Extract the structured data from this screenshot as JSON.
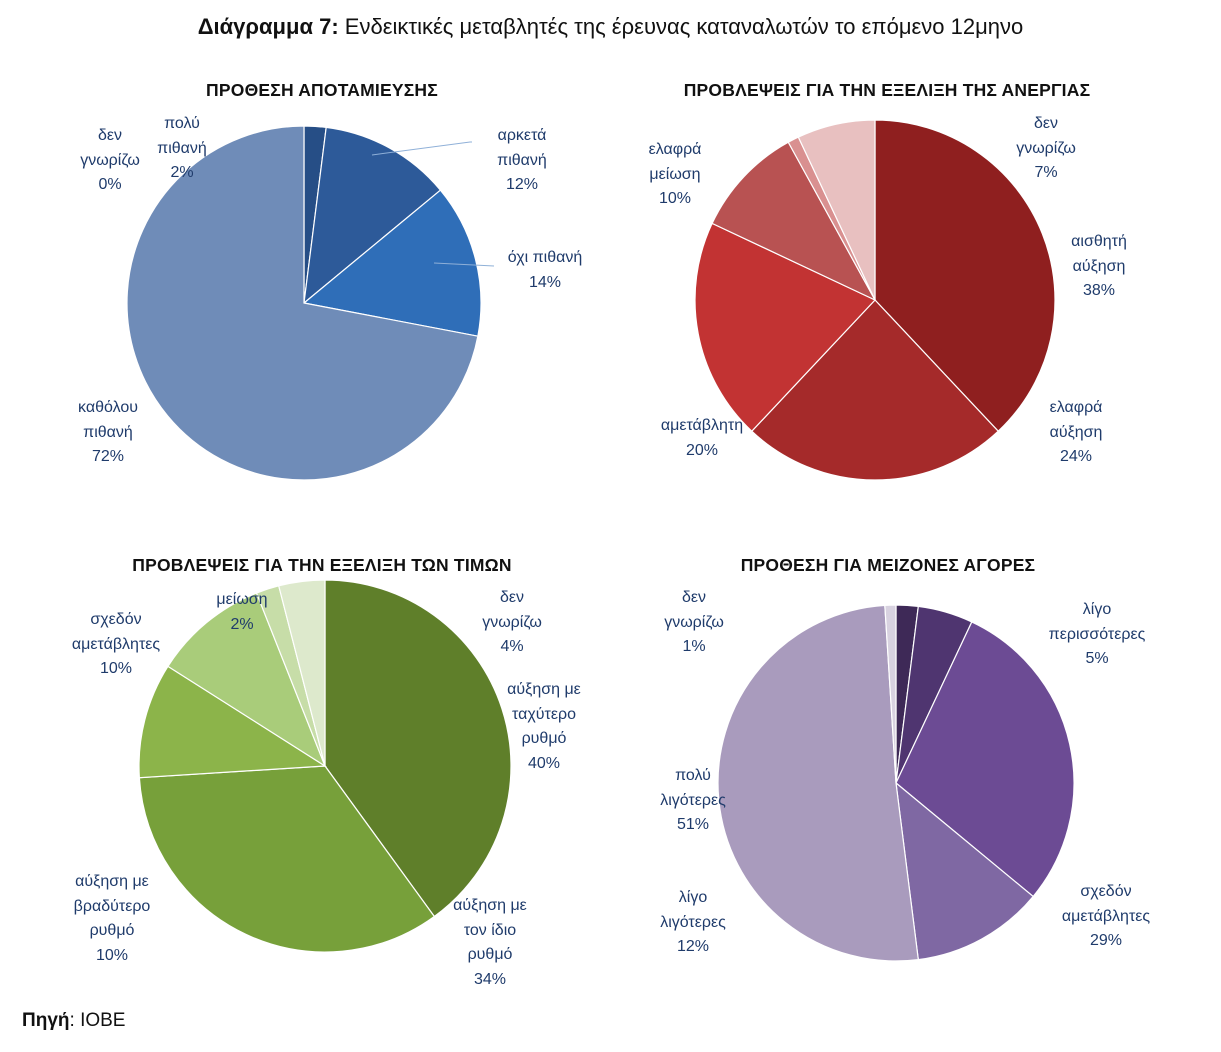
{
  "header": {
    "title_bold": "Διάγραμμα 7:",
    "title_rest": " Ενδεικτικές μεταβλητές της έρευνας καταναλωτών το επόμενο 12μηνο"
  },
  "source": {
    "label": "Πηγή",
    "sep": ": ",
    "value": "ΙΟΒΕ"
  },
  "colors": {
    "savings": [
      "#264e86",
      "#2d5a99",
      "#2f6eb8",
      "#6f8cb8"
    ],
    "unemployment": [
      "#8f1f1f",
      "#a52a2a",
      "#c23333",
      "#b85252",
      "#d99090",
      "#e8c0c0"
    ],
    "prices": [
      "#5f7f2a",
      "#77a03a",
      "#8cb44a",
      "#a9cc7a",
      "#c7dda8",
      "#dde9cc"
    ],
    "purchases": [
      "#3e2957",
      "#4f3570",
      "#6c4b94",
      "#7f68a3",
      "#a99bbd",
      "#d8d2e0"
    ]
  },
  "chart_data": [
    {
      "type": "pie",
      "title": "ΠΡΟΘΕΣΗ ΑΠΟΤΑΜΙΕΥΣΗΣ",
      "slices": [
        {
          "label": "δεν\nγνωρίζω",
          "value": 0,
          "pct": "0%"
        },
        {
          "label": "πολύ\nπιθανή",
          "value": 2,
          "pct": "2%"
        },
        {
          "label": "αρκετά\nπιθανή",
          "value": 12,
          "pct": "12%"
        },
        {
          "label": "όχι πιθανή",
          "value": 14,
          "pct": "14%"
        },
        {
          "label": "καθόλου\nπιθανή",
          "value": 72,
          "pct": "72%"
        }
      ]
    },
    {
      "type": "pie",
      "title": "ΠΡΟΒΛΕΨΕΙΣ ΓΙΑ ΤΗΝ ΕΞΕΛΙΞΗ ΤΗΣ ΑΝΕΡΓΙΑΣ",
      "slices": [
        {
          "label": "αισθητή\nαύξηση",
          "value": 38,
          "pct": "38%"
        },
        {
          "label": "ελαφρά\nαύξηση",
          "value": 24,
          "pct": "24%"
        },
        {
          "label": "αμετάβλητη",
          "value": 20,
          "pct": "20%"
        },
        {
          "label": "ελαφρά\nμείωση",
          "value": 10,
          "pct": "10%"
        },
        {
          "label": "",
          "value": 1,
          "pct": ""
        },
        {
          "label": "δεν\nγνωρίζω",
          "value": 7,
          "pct": "7%"
        }
      ]
    },
    {
      "type": "pie",
      "title": "ΠΡΟΒΛΕΨΕΙΣ ΓΙΑ ΤΗΝ ΕΞΕΛΙΞΗ ΤΩΝ ΤΙΜΩΝ",
      "slices": [
        {
          "label": "αύξηση με\nταχύτερο\nρυθμό",
          "value": 40,
          "pct": "40%"
        },
        {
          "label": "αύξηση με\nτον ίδιο\nρυθμό",
          "value": 34,
          "pct": "34%"
        },
        {
          "label": "αύξηση με\nβραδύτερο\nρυθμό",
          "value": 10,
          "pct": "10%"
        },
        {
          "label": "σχεδόν\nαμετάβλητες",
          "value": 10,
          "pct": "10%"
        },
        {
          "label": "μείωση",
          "value": 2,
          "pct": "2%"
        },
        {
          "label": "δεν\nγνωρίζω",
          "value": 4,
          "pct": "4%"
        }
      ]
    },
    {
      "type": "pie",
      "title": "ΠΡΟΘΕΣΗ ΓΙΑ ΜΕΙΖΟΝΕΣ ΑΓΟΡΕΣ",
      "slices": [
        {
          "label": "",
          "value": 2,
          "pct": ""
        },
        {
          "label": "λίγο\nπερισσότερες",
          "value": 5,
          "pct": "5%"
        },
        {
          "label": "σχεδόν\nαμετάβλητες",
          "value": 29,
          "pct": "29%"
        },
        {
          "label": "λίγο\nλιγότερες",
          "value": 12,
          "pct": "12%"
        },
        {
          "label": "πολύ\nλιγότερες",
          "value": 51,
          "pct": "51%"
        },
        {
          "label": "δεν\nγνωρίζω",
          "value": 1,
          "pct": "1%"
        }
      ]
    }
  ]
}
